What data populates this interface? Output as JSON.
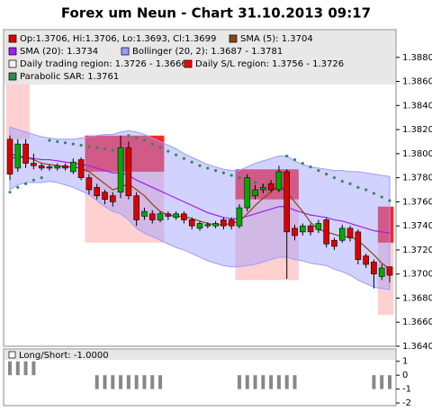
{
  "chart_data": {
    "type": "candlestick",
    "title": "Forex um Neun - Chart 31.10.2013 09:17",
    "open": [
      1.3812,
      1.3788,
      1.3808,
      1.3792,
      1.379,
      1.3789,
      1.3788,
      1.379,
      1.3785,
      1.3795,
      1.378,
      1.3772,
      1.3768,
      1.3765,
      1.3768,
      1.3805,
      1.3765,
      1.3748,
      1.375,
      1.3745,
      1.375,
      1.3747,
      1.375,
      1.3745,
      1.3738,
      1.374,
      1.374,
      1.3745,
      1.3745,
      1.374,
      1.3755,
      1.3765,
      1.377,
      1.3775,
      1.377,
      1.3785,
      1.3738,
      1.3735,
      1.374,
      1.3737,
      1.3745,
      1.3728,
      1.3728,
      1.3738,
      1.3735,
      1.3715,
      1.371,
      1.3698,
      1.3706
    ],
    "high": [
      1.3815,
      1.3812,
      1.3812,
      1.38,
      1.3792,
      1.3791,
      1.3792,
      1.3792,
      1.3796,
      1.3797,
      1.3783,
      1.3775,
      1.377,
      1.3768,
      1.3815,
      1.381,
      1.3768,
      1.3755,
      1.3753,
      1.3752,
      1.3752,
      1.3752,
      1.3752,
      1.3747,
      1.3744,
      1.3743,
      1.3744,
      1.3747,
      1.3747,
      1.3758,
      1.3783,
      1.3774,
      1.3775,
      1.3778,
      1.379,
      1.3787,
      1.3741,
      1.3742,
      1.3742,
      1.3745,
      1.3747,
      1.373,
      1.3741,
      1.374,
      1.3737,
      1.3717,
      1.3712,
      1.3708,
      1.3706
    ],
    "low": [
      1.3778,
      1.3785,
      1.3788,
      1.3787,
      1.3786,
      1.3786,
      1.3786,
      1.3786,
      1.3783,
      1.3778,
      1.3766,
      1.3762,
      1.3758,
      1.3756,
      1.3763,
      1.3762,
      1.374,
      1.3745,
      1.3742,
      1.3743,
      1.3745,
      1.3745,
      1.3742,
      1.3737,
      1.3736,
      1.3738,
      1.3738,
      1.3737,
      1.3737,
      1.3738,
      1.3752,
      1.3762,
      1.3767,
      1.3768,
      1.3768,
      1.3696,
      1.3728,
      1.3732,
      1.3732,
      1.3734,
      1.3722,
      1.372,
      1.3726,
      1.3727,
      1.3708,
      1.3705,
      1.3688,
      1.3695,
      1.3693
    ],
    "close": [
      1.3783,
      1.3808,
      1.3792,
      1.379,
      1.3788,
      1.3788,
      1.379,
      1.3788,
      1.3793,
      1.378,
      1.377,
      1.3765,
      1.3762,
      1.376,
      1.3805,
      1.3765,
      1.3745,
      1.3752,
      1.3745,
      1.375,
      1.3748,
      1.375,
      1.3745,
      1.374,
      1.3742,
      1.3741,
      1.3742,
      1.374,
      1.374,
      1.3755,
      1.378,
      1.377,
      1.3772,
      1.377,
      1.3785,
      1.3735,
      1.3732,
      1.374,
      1.3735,
      1.3742,
      1.3725,
      1.3723,
      1.3738,
      1.373,
      1.3712,
      1.3708,
      1.37,
      1.3705,
      1.3699
    ],
    "up_color": "#00aa00",
    "down_color": "#dd0000",
    "sma5": {
      "color": "#8b4513",
      "values": [
        1.38,
        1.3798,
        1.3797,
        1.3795,
        1.3792,
        1.3791,
        1.379,
        1.3789,
        1.3789,
        1.3788,
        1.3785,
        1.378,
        1.3775,
        1.377,
        1.3772,
        1.3775,
        1.377,
        1.3765,
        1.3758,
        1.3752,
        1.3749,
        1.3748,
        1.3748,
        1.3746,
        1.3744,
        1.3742,
        1.3741,
        1.3741,
        1.3742,
        1.3744,
        1.375,
        1.3757,
        1.3763,
        1.3768,
        1.3774,
        1.3768,
        1.376,
        1.3752,
        1.3743,
        1.3737,
        1.3735,
        1.3733,
        1.3731,
        1.3731,
        1.3728,
        1.3722,
        1.3716,
        1.3709,
        1.3704
      ]
    },
    "sma20": {
      "color": "#a020f0",
      "values": [
        1.3796,
        1.3797,
        1.3797,
        1.3796,
        1.3795,
        1.3795,
        1.3794,
        1.3793,
        1.3792,
        1.3791,
        1.379,
        1.3788,
        1.3786,
        1.3784,
        1.3784,
        1.3782,
        1.3778,
        1.3775,
        1.3772,
        1.3769,
        1.3766,
        1.3763,
        1.376,
        1.3757,
        1.3754,
        1.3751,
        1.3749,
        1.3747,
        1.3746,
        1.3746,
        1.3748,
        1.375,
        1.3752,
        1.3754,
        1.3756,
        1.3756,
        1.3753,
        1.3751,
        1.3749,
        1.3748,
        1.3747,
        1.3745,
        1.3744,
        1.3742,
        1.374,
        1.3738,
        1.3736,
        1.3735,
        1.3734
      ]
    },
    "bollinger": {
      "color": "#9c9cff",
      "upper": [
        1.3822,
        1.382,
        1.3818,
        1.3816,
        1.3814,
        1.3813,
        1.3812,
        1.3812,
        1.3812,
        1.3813,
        1.3814,
        1.3815,
        1.3816,
        1.3816,
        1.3818,
        1.3819,
        1.3818,
        1.3816,
        1.3813,
        1.381,
        1.3807,
        1.3804,
        1.38,
        1.3797,
        1.3794,
        1.3791,
        1.3789,
        1.3787,
        1.3786,
        1.3786,
        1.3789,
        1.3792,
        1.3794,
        1.3796,
        1.3798,
        1.3798,
        1.3794,
        1.3791,
        1.3789,
        1.3788,
        1.3787,
        1.3786,
        1.3786,
        1.3785,
        1.3785,
        1.3784,
        1.3783,
        1.3782,
        1.3781
      ],
      "lower": [
        1.377,
        1.3774,
        1.3776,
        1.3776,
        1.3776,
        1.3777,
        1.3776,
        1.3774,
        1.3772,
        1.3769,
        1.3766,
        1.3761,
        1.3756,
        1.3752,
        1.375,
        1.3745,
        1.3738,
        1.3734,
        1.3731,
        1.3728,
        1.3725,
        1.3722,
        1.372,
        1.3717,
        1.3714,
        1.3711,
        1.3709,
        1.3707,
        1.3706,
        1.3706,
        1.3707,
        1.3708,
        1.371,
        1.3712,
        1.3714,
        1.3714,
        1.3712,
        1.3711,
        1.3709,
        1.3708,
        1.3707,
        1.3704,
        1.3702,
        1.3699,
        1.3695,
        1.3692,
        1.3689,
        1.3688,
        1.3687
      ]
    },
    "sar": {
      "color": "#2e8b57",
      "values": [
        1.3768,
        1.3772,
        1.3775,
        1.3778,
        1.378,
        1.3811,
        1.381,
        1.3809,
        1.3808,
        1.3807,
        1.3806,
        1.3805,
        1.3804,
        1.3803,
        1.3802,
        1.3815,
        1.3813,
        1.3811,
        1.3808,
        1.3805,
        1.3802,
        1.3799,
        1.3796,
        1.3793,
        1.379,
        1.3788,
        1.3786,
        1.3784,
        1.3782,
        1.378,
        1.3778,
        1.3776,
        1.3774,
        1.3772,
        1.377,
        1.3798,
        1.3795,
        1.3792,
        1.3789,
        1.3786,
        1.3783,
        1.378,
        1.3777,
        1.3775,
        1.3772,
        1.377,
        1.3767,
        1.3764,
        1.3761
      ]
    },
    "trading_color": "#ffc4c4",
    "sl_color": "#ff0000",
    "regions": [
      {
        "from": 0,
        "to": 2,
        "trading": [
          1.3812,
          1.3895
        ],
        "sl": null
      },
      {
        "from": 10,
        "to": 19,
        "trading": [
          1.3726,
          1.3785
        ],
        "sl": [
          1.3785,
          1.3815
        ]
      },
      {
        "from": 29,
        "to": 36,
        "trading": [
          1.3695,
          1.3762
        ],
        "sl": [
          1.3762,
          1.3787
        ]
      },
      {
        "from": 47,
        "to": 48,
        "trading": [
          1.3666,
          1.3726
        ],
        "sl": [
          1.3726,
          1.3756
        ]
      }
    ],
    "legend": [
      {
        "text": "Op:1.3706, Hi:1.3706, Lo:1.3693, Cl:1.3699",
        "color": "#dd0000"
      },
      {
        "text": "SMA (5): 1.3704",
        "color": "#8b4513"
      },
      {
        "text": "SMA (20): 1.3734",
        "color": "#a020f0"
      },
      {
        "text": "Bollinger (20, 2): 1.3687 - 1.3781",
        "color": "#9c9cff"
      },
      {
        "text": "Daily trading region: 1.3726 - 1.3666",
        "color": "#fff0f0"
      },
      {
        "text": "Daily S/L region: 1.3756 - 1.3726",
        "color": "#ff0000"
      },
      {
        "text": "Parabolic SAR: 1.3761",
        "color": "#2e8b57"
      }
    ],
    "ylim": [
      1.364,
      1.3903
    ],
    "yticks": [
      {
        "value": 1.364,
        "label": "1.3640"
      },
      {
        "value": 1.366,
        "label": "1.3660"
      },
      {
        "value": 1.368,
        "label": "1.3680"
      },
      {
        "value": 1.37,
        "label": "1.3700"
      },
      {
        "value": 1.372,
        "label": "1.3720"
      },
      {
        "value": 1.374,
        "label": "1.3740"
      },
      {
        "value": 1.376,
        "label": "1.3760"
      },
      {
        "value": 1.378,
        "label": "1.3780"
      },
      {
        "value": 1.38,
        "label": "1.3800"
      },
      {
        "value": 1.382,
        "label": "1.3820"
      },
      {
        "value": 1.384,
        "label": "1.3840"
      },
      {
        "value": 1.386,
        "label": "1.3860"
      },
      {
        "value": 1.388,
        "label": "1.3880"
      }
    ],
    "indicator": {
      "type": "bar",
      "legend": "Long/Short: -1.0000",
      "color": "#888888",
      "values": [
        1,
        1,
        1,
        1,
        0,
        0,
        0,
        0,
        0,
        0,
        0,
        -1,
        -1,
        -1,
        -1,
        -1,
        -1,
        -1,
        -1,
        -1,
        0,
        0,
        0,
        0,
        0,
        0,
        0,
        0,
        0,
        -1,
        -1,
        -1,
        -1,
        -1,
        -1,
        -1,
        -1,
        0,
        0,
        0,
        0,
        0,
        0,
        0,
        0,
        0,
        -1,
        -1,
        -1
      ],
      "ylim": [
        -2.19,
        1.89
      ],
      "yticks": [
        1,
        0,
        -1,
        -2
      ]
    }
  }
}
